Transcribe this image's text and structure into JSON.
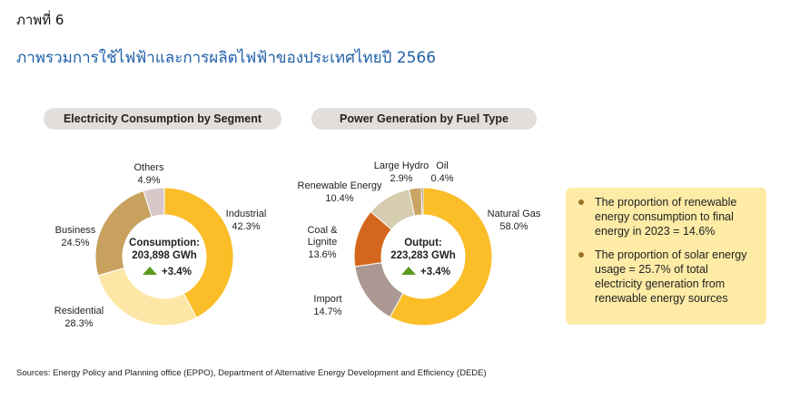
{
  "figure_label": "ภาพที่ 6",
  "page_title": "ภาพรวมการใช้ไฟฟ้าและการผลิตไฟฟ้าของประเทศไทยปี 2566",
  "chart_data": [
    {
      "type": "pie",
      "variant": "donut",
      "title": "Electricity Consumption by Segment",
      "center_label": "Consumption:",
      "center_value": "203,898 GWh",
      "center_change": "+3.4%",
      "slices": [
        {
          "name": "Industrial",
          "value": 42.3,
          "label": "42.3%",
          "color": "#fbbd28"
        },
        {
          "name": "Residential",
          "value": 28.3,
          "label": "28.3%",
          "color": "#fde7a6"
        },
        {
          "name": "Business",
          "value": 24.5,
          "label": "24.5%",
          "color": "#c7a15d"
        },
        {
          "name": "Others",
          "value": 4.9,
          "label": "4.9%",
          "color": "#d8c8c8"
        }
      ]
    },
    {
      "type": "pie",
      "variant": "donut",
      "title": "Power Generation  by Fuel Type",
      "center_label": "Output:",
      "center_value": "223,283 GWh",
      "center_change": "+3.4%",
      "slices": [
        {
          "name": "Natural Gas",
          "value": 58.0,
          "label": "58.0%",
          "color": "#fbbd28"
        },
        {
          "name": "Import",
          "value": 14.7,
          "label": "14.7%",
          "color": "#ac9892"
        },
        {
          "name": "Coal & Lignite",
          "value": 13.6,
          "label": "13.6%",
          "color": "#d4671d"
        },
        {
          "name": "Renewable Energy",
          "value": 10.4,
          "label": "10.4%",
          "color": "#d6ccb0"
        },
        {
          "name": "Large Hydro",
          "value": 2.9,
          "label": "2.9%",
          "color": "#c9a464"
        },
        {
          "name": "Oil",
          "value": 0.4,
          "label": "0.4%",
          "color": "#6b5a4a"
        }
      ]
    }
  ],
  "notes": [
    "The proportion of renewable energy consumption to final energy in 2023 = 14.6%",
    "The proportion of solar energy usage = 25.7% of total electricity generation from renewable energy sources"
  ],
  "source": "Sources: Energy Policy and Planning office (EPPO), Department of Alternative Energy Development and Efficiency (DEDE)",
  "colors": {
    "title": "#1f5fa8",
    "pill": "#e2dedb",
    "note_bg": "#fdeba6",
    "arrow": "#5a9a1e"
  }
}
